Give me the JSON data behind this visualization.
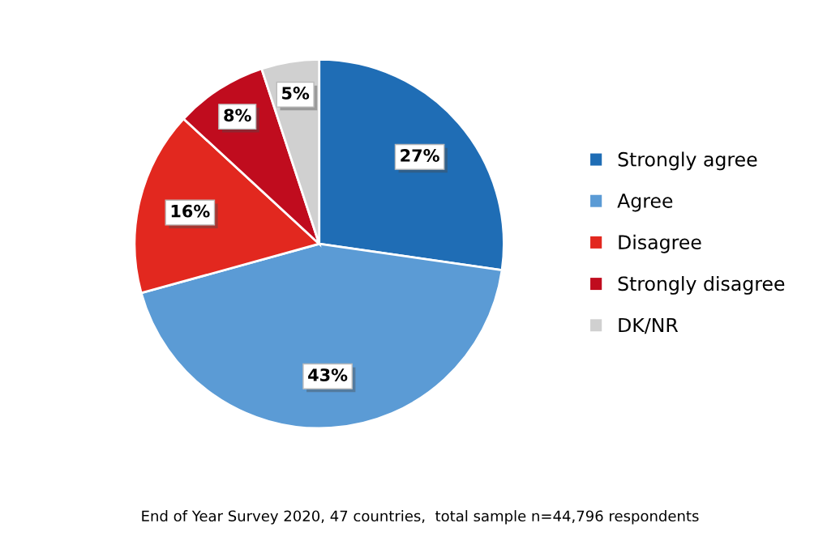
{
  "chart_data": {
    "type": "pie",
    "categories": [
      "Strongly agree",
      "Agree",
      "Disagree",
      "Strongly disagree",
      "DK/NR"
    ],
    "values": [
      27,
      43,
      16,
      8,
      5
    ],
    "colors": [
      "#1f6db5",
      "#5b9bd5",
      "#e2281f",
      "#c00c1e",
      "#d0d0d0"
    ],
    "value_labels": [
      "27%",
      "43%",
      "16%",
      "8%",
      "5%"
    ],
    "legend": "right",
    "annotations": [
      "End of Year Survey 2020, 47 countries,  total sample n=44,796 respondents"
    ]
  }
}
